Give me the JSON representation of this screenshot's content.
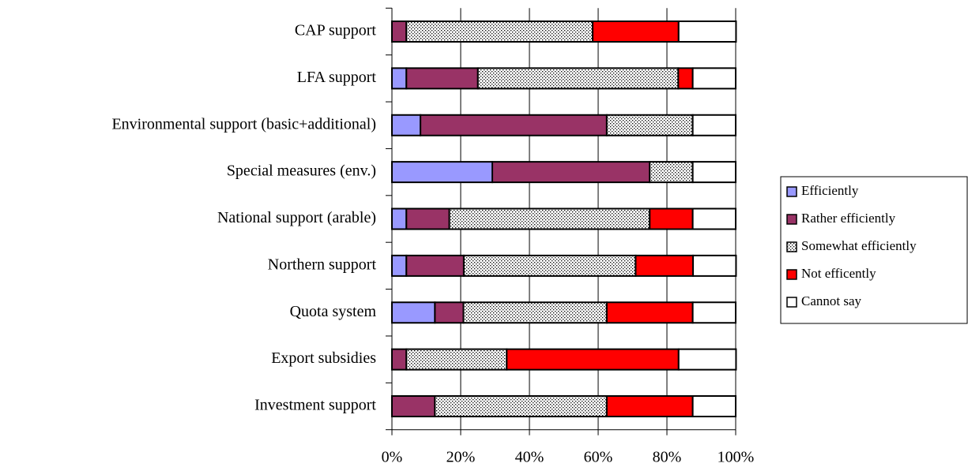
{
  "chart_data": {
    "type": "stacked_barh",
    "categories": [
      "CAP support",
      "LFA support",
      "Environmental support (basic+additional)",
      "Special measures (env.)",
      "National support (arable)",
      "Northern support",
      "Quota system",
      "Export subsidies",
      "Investment support"
    ],
    "series": [
      {
        "name": "Efficiently",
        "color": "#9999ff",
        "values": [
          0,
          4.2,
          8.3,
          29.2,
          4.2,
          4.2,
          12.5,
          0,
          0
        ]
      },
      {
        "name": "Rather efficiently",
        "color": "#993366",
        "values": [
          4.2,
          20.8,
          54.2,
          45.8,
          12.5,
          16.7,
          8.3,
          4.2,
          12.5
        ]
      },
      {
        "name": "Somewhat efficiently",
        "color": "#e0e0e0",
        "pattern": "dots",
        "values": [
          54.2,
          58.3,
          25,
          12.5,
          58.3,
          50,
          41.7,
          29.2,
          50
        ]
      },
      {
        "name": "Not efficently",
        "color": "#ff0000",
        "values": [
          25,
          4.2,
          0,
          0,
          12.5,
          16.7,
          25,
          50,
          25
        ]
      },
      {
        "name": "Cannot say",
        "color": "#ffffff",
        "values": [
          16.7,
          12.5,
          12.5,
          12.5,
          12.5,
          12.5,
          12.5,
          16.7,
          12.5
        ]
      }
    ],
    "xlim": [
      0,
      100
    ],
    "xticks": [
      {
        "value": 0,
        "label": "0%"
      },
      {
        "value": 20,
        "label": "20%"
      },
      {
        "value": 40,
        "label": "40%"
      },
      {
        "value": 60,
        "label": "60%"
      },
      {
        "value": 80,
        "label": "80%"
      },
      {
        "value": 100,
        "label": "100%"
      }
    ],
    "grid": true,
    "legend": "right"
  }
}
